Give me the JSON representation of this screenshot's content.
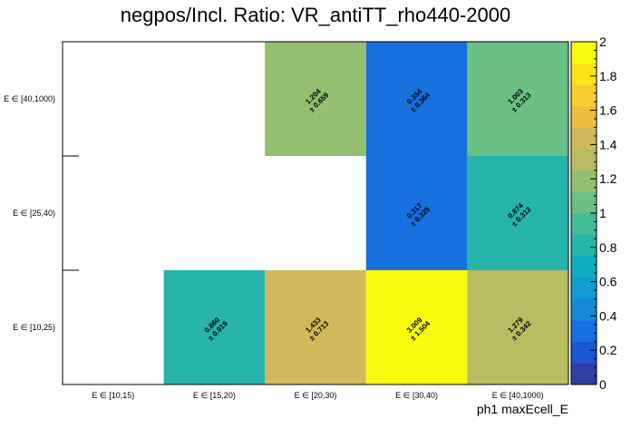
{
  "chart_data": {
    "type": "heatmap",
    "title": "negpos/Incl. Ratio: VR_antiTT_rho440-2000",
    "xlabel": "ph1 maxEcell_E",
    "ylabel": "",
    "x_categories": [
      "E ∈ [10,15)",
      "E ∈ [15,20)",
      "E ∈ [20,30)",
      "E ∈ [30,40)",
      "E ∈ [40,1000)"
    ],
    "y_categories": [
      "E ∈ [10,25)",
      "E ∈ [25,40)",
      "E ∈ [40,1000)"
    ],
    "cells": [
      {
        "x": 1,
        "y": 0,
        "value": 0.86,
        "error": 0.919,
        "value_text": "0.860",
        "error_text": "± 0.919"
      },
      {
        "x": 2,
        "y": 0,
        "value": 1.433,
        "error": 0.713,
        "value_text": "1.433",
        "error_text": "± 0.713"
      },
      {
        "x": 3,
        "y": 0,
        "value": 3.009,
        "error": 1.504,
        "value_text": "3.009",
        "error_text": "± 1.504"
      },
      {
        "x": 4,
        "y": 0,
        "value": 1.279,
        "error": 0.342,
        "value_text": "1.279",
        "error_text": "± 0.342"
      },
      {
        "x": 3,
        "y": 1,
        "value": 0.317,
        "error": 0.325,
        "value_text": "0.317",
        "error_text": "± 0.325"
      },
      {
        "x": 4,
        "y": 1,
        "value": 0.874,
        "error": 0.312,
        "value_text": "0.874",
        "error_text": "± 0.312"
      },
      {
        "x": 2,
        "y": 2,
        "value": 1.204,
        "error": 0.659,
        "value_text": "1.204",
        "error_text": "± 0.659"
      },
      {
        "x": 3,
        "y": 2,
        "value": 0.354,
        "error": 0.364,
        "value_text": "0.354",
        "error_text": "± 0.364"
      },
      {
        "x": 4,
        "y": 2,
        "value": 1.003,
        "error": 0.313,
        "value_text": "1.003",
        "error_text": "± 0.313"
      }
    ],
    "z_range": [
      0,
      2
    ],
    "z_ticks": [
      0,
      0.2,
      0.4,
      0.6,
      0.8,
      1,
      1.2,
      1.4,
      1.6,
      1.8,
      2
    ],
    "z_tick_labels": [
      "0",
      "0.2",
      "0.4",
      "0.6",
      "0.8",
      "1",
      "1.2",
      "1.4",
      "1.6",
      "1.8",
      "2"
    ],
    "palette": [
      "#2f3fa6",
      "#1d56d2",
      "#1670dd",
      "#1588d4",
      "#0f9dd0",
      "#0fadc0",
      "#26b3aa",
      "#44ba97",
      "#6abf84",
      "#94bf71",
      "#b8bd63",
      "#d2b85a",
      "#ecbd3f",
      "#f8cd2c",
      "#fbe31a",
      "#f9fb0e"
    ],
    "grid": false,
    "legend": "palette-right"
  }
}
